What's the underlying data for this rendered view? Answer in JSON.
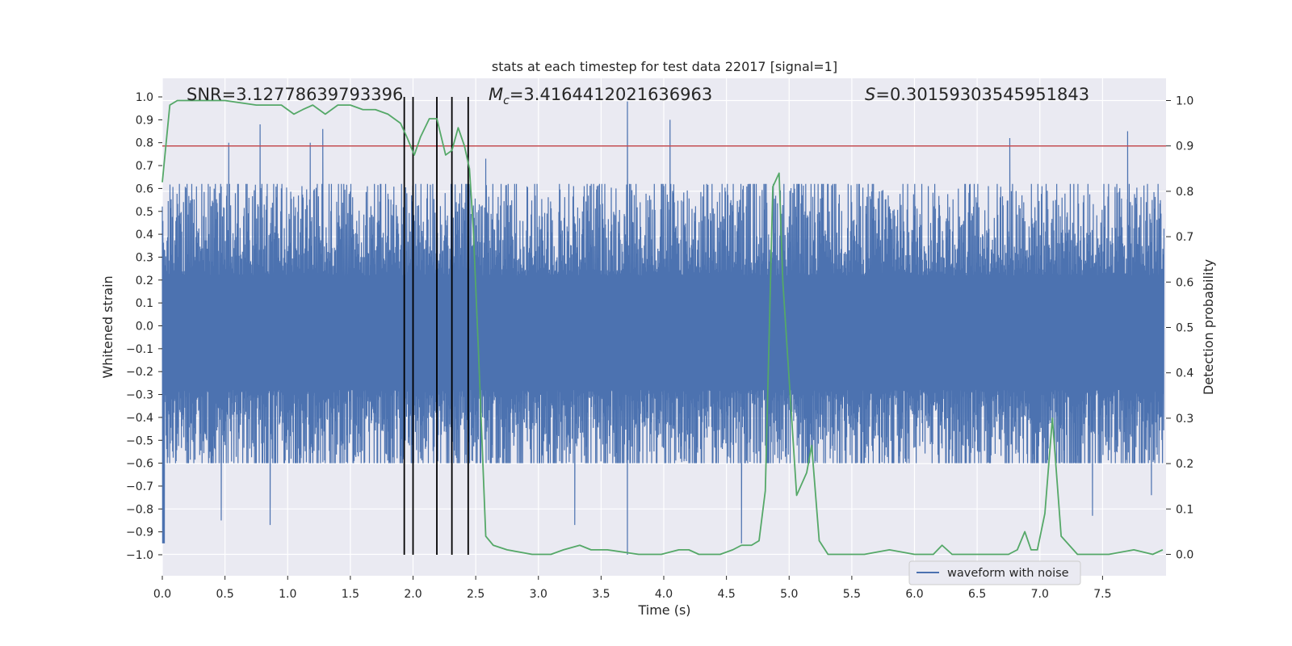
{
  "chart_data": {
    "type": "line",
    "title": "stats at each timestep for test data 22017 [signal=1]",
    "xlabel": "Time (s)",
    "ylabel": "Whitened strain",
    "ylabel_right": "Detection probability",
    "xlim": [
      0.0,
      8.0
    ],
    "ylim": [
      -1.1,
      1.1
    ],
    "ylim_right": [
      -0.05,
      1.05
    ],
    "x_ticks": [
      "0.0",
      "0.5",
      "1.0",
      "1.5",
      "2.0",
      "2.5",
      "3.0",
      "3.5",
      "4.0",
      "4.5",
      "5.0",
      "5.5",
      "6.0",
      "6.5",
      "7.0",
      "7.5"
    ],
    "y_ticks": [
      "1.0",
      "0.9",
      "0.8",
      "0.7",
      "0.6",
      "0.5",
      "0.4",
      "0.3",
      "0.2",
      "0.1",
      "0.0",
      "-0.1",
      "-0.2",
      "-0.3",
      "-0.4",
      "-0.5",
      "-0.6",
      "-0.7",
      "-0.8",
      "-0.9",
      "-1.0"
    ],
    "y_ticks_right": [
      "1.0",
      "0.9",
      "0.8",
      "0.7",
      "0.6",
      "0.5",
      "0.4",
      "0.3",
      "0.2",
      "0.1",
      "0.0"
    ],
    "grid": true,
    "legend_placement": "lower-right",
    "annotations": {
      "snr": "SNR=3.12778639793396",
      "mc_symbol": "M",
      "mc_sub": "c",
      "mc_value": "=3.4164412021636963",
      "s_symbol": "S",
      "s_value": "=0.30159303545951843"
    },
    "threshold": {
      "axis": "right",
      "value": 0.9,
      "color": "#c44e52"
    },
    "vertical_markers": {
      "x": [
        1.93,
        2.0,
        2.19,
        2.31,
        2.44
      ],
      "color": "#000000"
    },
    "series": [
      {
        "name": "waveform with noise",
        "axis": "left",
        "color": "#4c72b0",
        "style": "dense noisy oscillation",
        "typical_envelope": [
          -0.4,
          0.5
        ],
        "peak_spikes": [
          [
            0.53,
            0.8
          ],
          [
            0.78,
            0.88
          ],
          [
            1.18,
            0.8
          ],
          [
            1.28,
            0.86
          ],
          [
            2.58,
            0.73
          ],
          [
            3.71,
            0.98
          ],
          [
            4.05,
            0.9
          ],
          [
            6.76,
            0.82
          ],
          [
            7.7,
            0.85
          ],
          [
            0.47,
            -0.85
          ],
          [
            0.86,
            -0.87
          ],
          [
            3.29,
            -0.87
          ],
          [
            3.71,
            -1.0
          ],
          [
            4.62,
            -0.95
          ],
          [
            7.42,
            -0.83
          ],
          [
            7.89,
            -0.74
          ]
        ]
      },
      {
        "name": "",
        "axis": "right",
        "color": "#55a868",
        "x": [
          0.0,
          0.06,
          0.12,
          0.25,
          0.5,
          0.75,
          0.95,
          1.05,
          1.12,
          1.2,
          1.3,
          1.4,
          1.5,
          1.6,
          1.7,
          1.8,
          1.9,
          1.95,
          2.01,
          2.06,
          2.13,
          2.19,
          2.26,
          2.31,
          2.36,
          2.41,
          2.45,
          2.48,
          2.52,
          2.58,
          2.64,
          2.75,
          2.95,
          3.1,
          3.2,
          3.33,
          3.42,
          3.55,
          3.8,
          3.98,
          4.12,
          4.2,
          4.28,
          4.45,
          4.55,
          4.62,
          4.7,
          4.76,
          4.81,
          4.87,
          4.92,
          4.95,
          5.06,
          5.14,
          5.18,
          5.24,
          5.31,
          5.38,
          5.6,
          5.8,
          6.0,
          6.15,
          6.22,
          6.3,
          6.55,
          6.75,
          6.82,
          6.88,
          6.93,
          6.98,
          7.04,
          7.1,
          7.17,
          7.3,
          7.42,
          7.55,
          7.75,
          7.9,
          7.98
        ],
        "y": [
          0.82,
          0.99,
          1.0,
          1.0,
          1.0,
          0.99,
          0.99,
          0.97,
          0.98,
          0.99,
          0.97,
          0.99,
          0.99,
          0.98,
          0.98,
          0.97,
          0.95,
          0.92,
          0.88,
          0.92,
          0.96,
          0.96,
          0.88,
          0.89,
          0.94,
          0.9,
          0.85,
          0.72,
          0.46,
          0.04,
          0.02,
          0.01,
          0.0,
          0.0,
          0.01,
          0.02,
          0.01,
          0.01,
          0.0,
          0.0,
          0.01,
          0.01,
          0.0,
          0.0,
          0.01,
          0.02,
          0.02,
          0.03,
          0.14,
          0.81,
          0.84,
          0.6,
          0.13,
          0.18,
          0.24,
          0.03,
          0.0,
          0.0,
          0.0,
          0.01,
          0.0,
          0.0,
          0.02,
          0.0,
          0.0,
          0.0,
          0.01,
          0.05,
          0.01,
          0.01,
          0.09,
          0.3,
          0.04,
          0.0,
          0.0,
          0.0,
          0.01,
          0.0,
          0.01
        ]
      }
    ]
  }
}
